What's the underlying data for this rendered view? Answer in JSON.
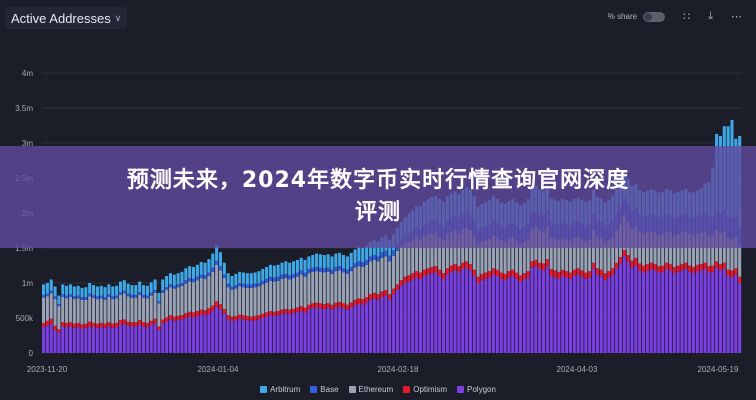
{
  "header": {
    "title": "Active Addresses",
    "share_label": "% share",
    "icons": [
      "chevron-down-icon",
      "grid-icon",
      "download-icon",
      "more-icon"
    ]
  },
  "banner": {
    "line1": "预测未来，2024年数字币实时行情查询官网深度",
    "line2": "评测"
  },
  "chart_data": {
    "type": "bar",
    "stacked": true,
    "title": "Active Addresses",
    "xlabel": "",
    "ylabel": "",
    "start_date": "2023-11-20",
    "end_date": "2024-05-19",
    "interval": "daily",
    "x_ticks": [
      "2023-11-20",
      "2024-01-04",
      "2024-02-18",
      "2024-04-03",
      "2024-05-19"
    ],
    "y_ticks": [
      "0",
      "500k",
      "1m",
      "1.5m",
      "2m",
      "2.5m",
      "3m",
      "3.5m",
      "4m"
    ],
    "ylim": [
      0,
      4000000
    ],
    "unit": "thousands",
    "grid": "horizontal",
    "legend": "bottom",
    "series": [
      {
        "name": "Polygon",
        "color": "#7b3fe4",
        "values": [
          370,
          390,
          410,
          330,
          290,
          380,
          370,
          380,
          360,
          370,
          350,
          360,
          380,
          370,
          360,
          370,
          360,
          380,
          360,
          370,
          400,
          410,
          390,
          380,
          380,
          400,
          380,
          370,
          400,
          420,
          330,
          420,
          450,
          480,
          460,
          470,
          480,
          500,
          520,
          510,
          530,
          550,
          540,
          560,
          600,
          660,
          620,
          560,
          480,
          460,
          470,
          490,
          480,
          470,
          460,
          470,
          480,
          500,
          520,
          540,
          530,
          540,
          560,
          570,
          560,
          570,
          590,
          600,
          580,
          620,
          640,
          650,
          640,
          630,
          640,
          620,
          650,
          660,
          640,
          620,
          650,
          680,
          700,
          690,
          720,
          760,
          780,
          760,
          800,
          820,
          760,
          840,
          900,
          960,
          1000,
          1020,
          1050,
          1080,
          1060,
          1100,
          1120,
          1140,
          1150,
          1100,
          1050,
          1120,
          1160,
          1180,
          1150,
          1200,
          1220,
          1180,
          1100,
          1000,
          1040,
          1060,
          1080,
          1120,
          1100,
          1060,
          1040,
          1080,
          1100,
          1060,
          1020,
          1050,
          1080,
          1220,
          1240,
          1200,
          1180,
          1240,
          1100,
          1080,
          1060,
          1100,
          1080,
          1060,
          1100,
          1120,
          1090,
          1060,
          1080,
          1200,
          1120,
          1100,
          1040,
          1080,
          1120,
          1200,
          1280,
          1380,
          1300,
          1220,
          1250,
          1180,
          1150,
          1170,
          1200,
          1180,
          1150,
          1160,
          1200,
          1180,
          1140,
          1160,
          1180,
          1200,
          1160,
          1140,
          1170,
          1180,
          1200,
          1150,
          1160,
          1220,
          1180,
          1200,
          1100,
          1080,
          1120,
          1000
        ]
      },
      {
        "name": "Optimism",
        "color": "#e8192c",
        "values": [
          60,
          70,
          80,
          60,
          50,
          60,
          60,
          60,
          60,
          60,
          60,
          60,
          70,
          60,
          60,
          60,
          60,
          60,
          60,
          60,
          70,
          70,
          60,
          60,
          60,
          70,
          60,
          60,
          60,
          70,
          50,
          60,
          60,
          60,
          60,
          60,
          60,
          70,
          70,
          70,
          70,
          70,
          70,
          80,
          80,
          80,
          80,
          70,
          60,
          60,
          60,
          60,
          60,
          60,
          60,
          60,
          60,
          60,
          60,
          60,
          60,
          60,
          60,
          60,
          60,
          60,
          60,
          70,
          70,
          70,
          70,
          70,
          70,
          70,
          70,
          70,
          70,
          70,
          70,
          70,
          70,
          80,
          80,
          80,
          80,
          80,
          80,
          80,
          80,
          80,
          80,
          80,
          80,
          80,
          90,
          90,
          90,
          90,
          90,
          90,
          90,
          90,
          90,
          90,
          90,
          90,
          90,
          90,
          90,
          90,
          90,
          90,
          90,
          90,
          90,
          90,
          90,
          90,
          90,
          90,
          90,
          90,
          90,
          90,
          90,
          90,
          90,
          90,
          90,
          90,
          100,
          100,
          100,
          100,
          100,
          90,
          90,
          90,
          90,
          90,
          90,
          90,
          90,
          90,
          90,
          90,
          100,
          90,
          90,
          90,
          90,
          90,
          100,
          100,
          110,
          100,
          100,
          100,
          90,
          90,
          90,
          90,
          90,
          90,
          90,
          90,
          90,
          90,
          90,
          90,
          90,
          90,
          90,
          90,
          90,
          90,
          90,
          90,
          90,
          100,
          90,
          90,
          90,
          90,
          90,
          80
        ]
      },
      {
        "name": "Ethereum",
        "color": "#9aa3b5",
        "values": [
          360,
          350,
          360,
          380,
          330,
          360,
          350,
          360,
          350,
          350,
          350,
          340,
          360,
          360,
          350,
          350,
          340,
          360,
          350,
          350,
          360,
          370,
          360,
          350,
          350,
          360,
          350,
          350,
          360,
          370,
          330,
          380,
          390,
          400,
          400,
          410,
          420,
          420,
          430,
          430,
          440,
          450,
          450,
          460,
          480,
          520,
          480,
          440,
          400,
          380,
          390,
          400,
          400,
          400,
          410,
          410,
          410,
          420,
          420,
          430,
          430,
          430,
          440,
          440,
          430,
          440,
          440,
          450,
          440,
          450,
          450,
          450,
          450,
          450,
          450,
          440,
          450,
          450,
          440,
          440,
          450,
          460,
          460,
          460,
          460,
          470,
          470,
          470,
          480,
          480,
          470,
          470,
          480,
          480,
          480,
          480,
          470,
          480,
          470,
          480,
          480,
          480,
          480,
          470,
          470,
          480,
          480,
          480,
          470,
          480,
          480,
          480,
          470,
          460,
          460,
          460,
          460,
          470,
          460,
          460,
          460,
          460,
          460,
          450,
          450,
          450,
          460,
          470,
          470,
          460,
          460,
          470,
          450,
          450,
          450,
          450,
          450,
          450,
          450,
          450,
          450,
          450,
          450,
          460,
          450,
          450,
          440,
          450,
          450,
          460,
          470,
          480,
          470,
          460,
          460,
          450,
          450,
          450,
          450,
          450,
          450,
          450,
          450,
          450,
          450,
          450,
          450,
          450,
          450,
          450,
          450,
          450,
          450,
          440,
          440,
          450,
          450,
          450,
          450,
          450,
          450,
          430
        ]
      },
      {
        "name": "Base",
        "color": "#2f5ee0",
        "values": [
          40,
          40,
          40,
          40,
          30,
          40,
          40,
          40,
          40,
          40,
          40,
          40,
          40,
          40,
          40,
          40,
          40,
          40,
          40,
          40,
          40,
          40,
          40,
          40,
          40,
          40,
          40,
          40,
          40,
          40,
          30,
          40,
          40,
          40,
          40,
          40,
          40,
          50,
          50,
          50,
          50,
          50,
          50,
          50,
          60,
          60,
          60,
          50,
          50,
          50,
          50,
          50,
          50,
          50,
          50,
          50,
          50,
          50,
          60,
          60,
          60,
          60,
          60,
          60,
          60,
          60,
          60,
          60,
          60,
          60,
          60,
          60,
          60,
          60,
          60,
          60,
          60,
          60,
          60,
          60,
          60,
          60,
          70,
          70,
          70,
          70,
          70,
          70,
          80,
          80,
          80,
          80,
          90,
          100,
          110,
          120,
          130,
          140,
          150,
          160,
          170,
          180,
          180,
          190,
          200,
          200,
          200,
          210,
          210,
          210,
          220,
          220,
          220,
          200,
          200,
          200,
          210,
          210,
          210,
          200,
          200,
          200,
          210,
          210,
          210,
          210,
          220,
          230,
          230,
          230,
          230,
          230,
          220,
          220,
          220,
          220,
          220,
          220,
          220,
          220,
          220,
          220,
          220,
          230,
          230,
          230,
          230,
          230,
          240,
          240,
          250,
          260,
          260,
          260,
          250,
          250,
          250,
          250,
          250,
          250,
          250,
          250,
          250,
          250,
          250,
          250,
          250,
          250,
          250,
          250,
          250,
          250,
          260,
          260,
          260,
          270,
          280,
          300,
          300,
          300,
          300,
          280
        ]
      },
      {
        "name": "Arbitrum",
        "color": "#3fa9e8",
        "values": [
          150,
          150,
          160,
          140,
          120,
          140,
          140,
          140,
          140,
          140,
          130,
          140,
          150,
          140,
          140,
          140,
          140,
          140,
          140,
          140,
          150,
          150,
          140,
          140,
          140,
          150,
          140,
          140,
          150,
          150,
          120,
          150,
          160,
          160,
          160,
          160,
          160,
          170,
          170,
          170,
          170,
          180,
          180,
          190,
          200,
          220,
          200,
          170,
          150,
          150,
          160,
          160,
          160,
          160,
          160,
          160,
          170,
          170,
          170,
          170,
          170,
          170,
          170,
          180,
          180,
          180,
          180,
          180,
          180,
          180,
          180,
          190,
          190,
          190,
          190,
          190,
          190,
          190,
          190,
          190,
          200,
          200,
          200,
          200,
          200,
          210,
          210,
          210,
          220,
          220,
          220,
          230,
          240,
          250,
          260,
          280,
          300,
          310,
          320,
          330,
          340,
          340,
          340,
          350,
          350,
          350,
          350,
          350,
          350,
          350,
          360,
          360,
          360,
          340,
          340,
          340,
          350,
          350,
          340,
          340,
          340,
          340,
          340,
          340,
          340,
          340,
          350,
          360,
          360,
          350,
          350,
          350,
          340,
          340,
          340,
          340,
          340,
          340,
          340,
          340,
          340,
          340,
          340,
          350,
          340,
          340,
          340,
          340,
          350,
          350,
          360,
          370,
          360,
          350,
          350,
          350,
          350,
          350,
          350,
          350,
          350,
          350,
          350,
          350,
          350,
          350,
          350,
          350,
          350,
          360,
          360,
          380,
          420,
          500,
          700,
          1100,
          1100,
          1200,
          1300,
          1400,
          1100,
          1300
        ]
      }
    ]
  }
}
